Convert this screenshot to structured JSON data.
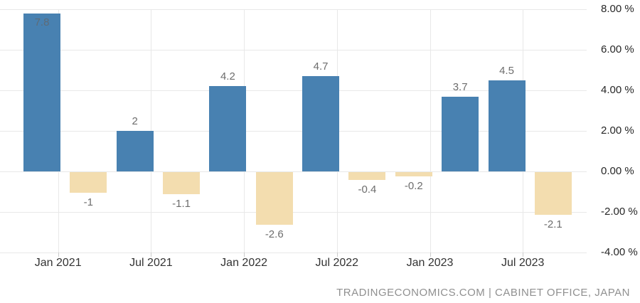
{
  "chart_data": {
    "type": "bar",
    "title": "",
    "values": [
      7.8,
      -1,
      2,
      -1.1,
      4.2,
      -2.6,
      4.7,
      -0.4,
      -0.2,
      3.7,
      4.5,
      -2.1
    ],
    "value_labels": [
      "7.8",
      "-1",
      "2",
      "-1.1",
      "4.2",
      "-2.6",
      "4.7",
      "-0.4",
      "-0.2",
      "3.7",
      "4.5",
      "-2.1"
    ],
    "x_tick_labels": [
      "Jan 2021",
      "Jul 2021",
      "Jan 2022",
      "Jul 2022",
      "Jan 2023",
      "Jul 2023"
    ],
    "y_tick_labels": [
      "8.00 %",
      "6.00 %",
      "4.00 %",
      "2.00 %",
      "0.00 %",
      "-2.00 %",
      "-4.00 %"
    ],
    "y_ticks": [
      8,
      6,
      4,
      2,
      0,
      -2,
      -4
    ],
    "ylim": [
      -4,
      8
    ],
    "grid": true,
    "legend": "none",
    "colors": {
      "positive_bar": "#4881b1",
      "negative_bar": "#f3ddaf",
      "value_label": "#6d6d6d",
      "inside_value_label": "#5e6b77",
      "y_axis_label": "#262626",
      "x_axis_label": "#333333",
      "gridline": "#e8e8e8",
      "tick": "#cccccc"
    }
  },
  "attribution": {
    "text": "TRADINGECONOMICS.COM | CABINET OFFICE, JAPAN",
    "color": "#909090"
  }
}
